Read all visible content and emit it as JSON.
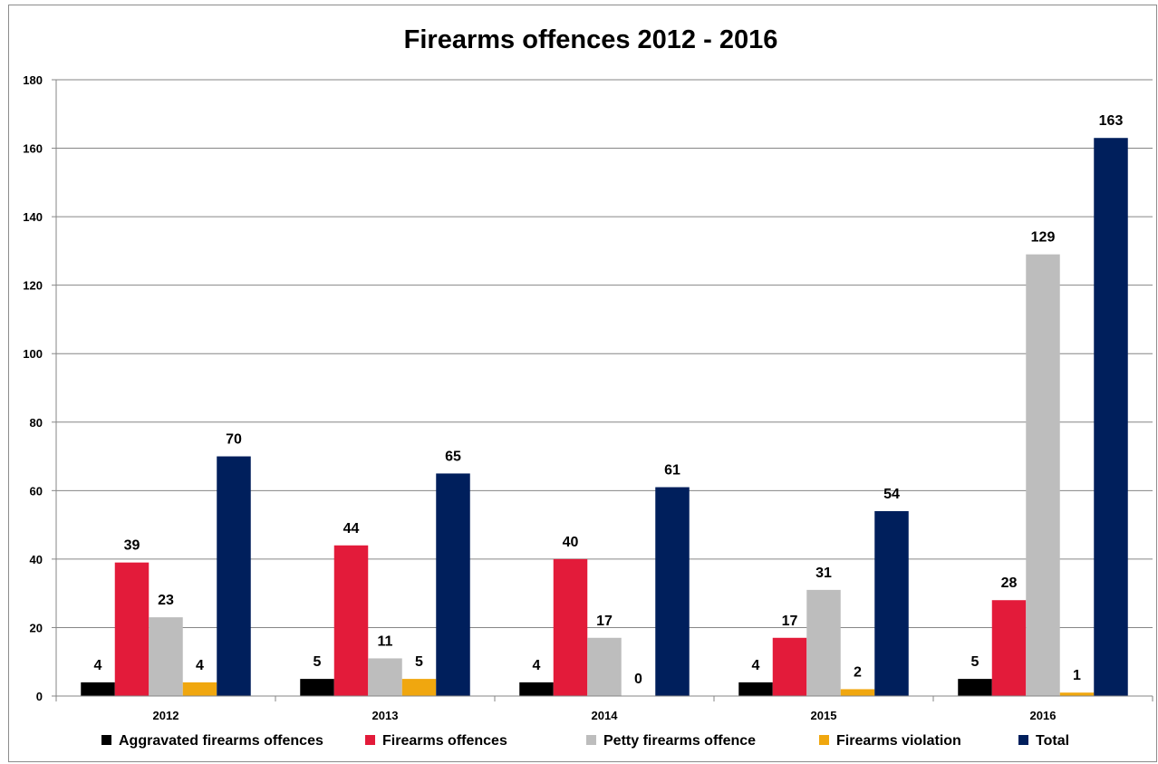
{
  "chart_data": {
    "type": "bar",
    "title": "Firearms offences 2012 - 2016",
    "categories": [
      "2012",
      "2013",
      "2014",
      "2015",
      "2016"
    ],
    "ylim": [
      0,
      180
    ],
    "yticks": [
      0,
      20,
      40,
      60,
      80,
      100,
      120,
      140,
      160,
      180
    ],
    "grid": true,
    "legend_position": "bottom",
    "series": [
      {
        "name": "Aggravated firearms offences",
        "color": "#000000",
        "values": [
          4,
          5,
          4,
          4,
          5
        ]
      },
      {
        "name": "Firearms offences",
        "color": "#e31b3a",
        "values": [
          39,
          44,
          40,
          17,
          28
        ]
      },
      {
        "name": "Petty firearms offence",
        "color": "#bdbdbd",
        "values": [
          23,
          11,
          17,
          31,
          129
        ]
      },
      {
        "name": "Firearms violation",
        "color": "#f0a70f",
        "values": [
          4,
          5,
          0,
          2,
          1
        ]
      },
      {
        "name": "Total",
        "color": "#001f5c",
        "values": [
          70,
          65,
          61,
          54,
          163
        ]
      }
    ]
  }
}
